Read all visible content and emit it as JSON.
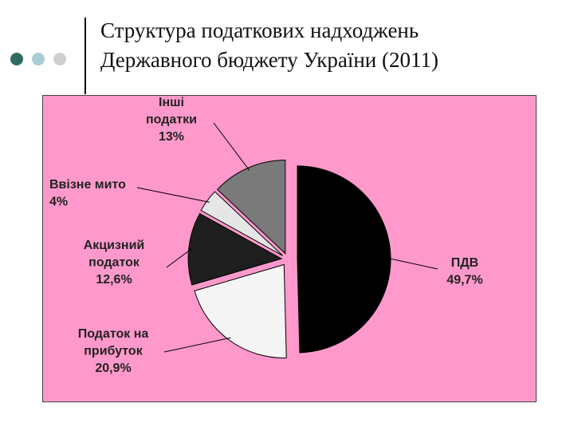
{
  "slide": {
    "title_line1": "Структура податкових надходжень",
    "title_line2": "Державного бюджету України (2011)"
  },
  "colors": {
    "background": "#ffffff",
    "chart_background": "#ff99cc",
    "bullet_dark": "#2e6b63",
    "bullet_light": "#a9cdd6",
    "bullet_grey": "#cfcfcf"
  },
  "chart_data": {
    "type": "pie",
    "title": "",
    "start_angle_deg": 0,
    "direction": "clockwise",
    "exploded": true,
    "slices": [
      {
        "label": "ПДВ",
        "value": 49.7,
        "value_label": "49,7%",
        "color": "#000000"
      },
      {
        "label": "Податок на прибуток",
        "value": 20.9,
        "value_label": "20,9%",
        "color": "#f4f4f4"
      },
      {
        "label": "Акцизний податок",
        "value": 12.6,
        "value_label": "12,6%",
        "color": "#1e1e1e"
      },
      {
        "label": "Ввізне мито",
        "value": 4,
        "value_label": "4%",
        "color": "#e6e6e6"
      },
      {
        "label": "Інші податки",
        "value": 13,
        "value_label": "13%",
        "color": "#7a7a7a"
      }
    ]
  }
}
